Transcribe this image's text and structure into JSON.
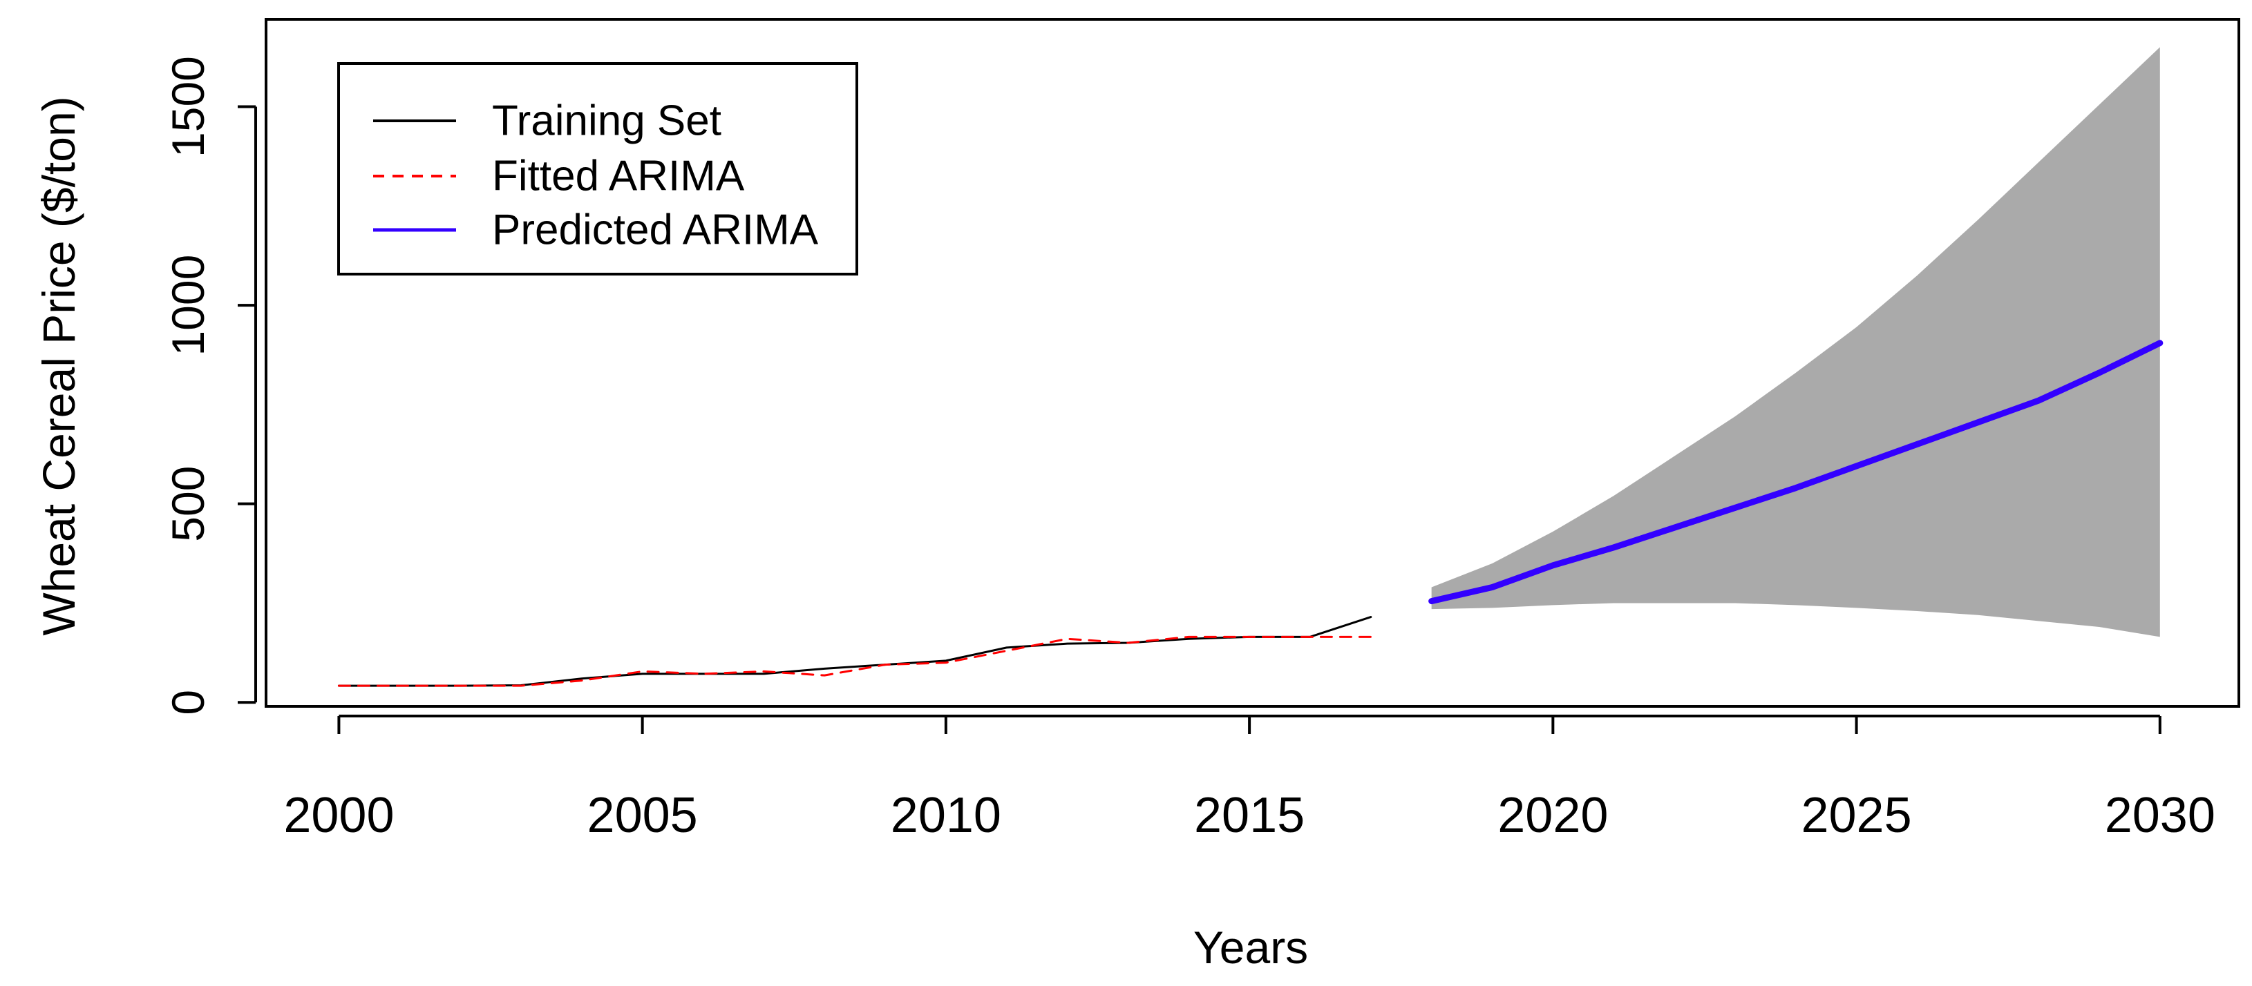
{
  "chart_data": {
    "type": "line",
    "title": "",
    "xlabel": "Years",
    "ylabel": "Wheat Cereal Price ($/ton)",
    "xlim": [
      1998.8,
      2031.3
    ],
    "ylim": [
      -10,
      1720
    ],
    "x_ticks": [
      2000,
      2005,
      2010,
      2015,
      2020,
      2025,
      2030
    ],
    "y_ticks": [
      0,
      500,
      1000,
      1500
    ],
    "grid": false,
    "legend_position": "top-left",
    "series": [
      {
        "name": "Training Set",
        "style": "solid",
        "color": "#000000",
        "x": [
          2000,
          2001,
          2002,
          2003,
          2004,
          2005,
          2006,
          2007,
          2008,
          2009,
          2010,
          2011,
          2012,
          2013,
          2014,
          2015,
          2016,
          2017
        ],
        "values": [
          42,
          42,
          42,
          43,
          60,
          72,
          72,
          72,
          85,
          95,
          105,
          138,
          148,
          150,
          160,
          165,
          165,
          215
        ]
      },
      {
        "name": "Fitted ARIMA",
        "style": "dashed",
        "color": "#ff0000",
        "x": [
          2000,
          2001,
          2002,
          2003,
          2004,
          2005,
          2006,
          2007,
          2008,
          2009,
          2010,
          2011,
          2012,
          2013,
          2014,
          2015,
          2016,
          2017
        ],
        "values": [
          42,
          42,
          42,
          42,
          55,
          78,
          72,
          78,
          68,
          95,
          100,
          130,
          160,
          150,
          165,
          165,
          165,
          165
        ]
      },
      {
        "name": "Predicted ARIMA",
        "style": "solid",
        "color": "#3300ff",
        "x": [
          2018,
          2019,
          2020,
          2021,
          2022,
          2023,
          2024,
          2025,
          2026,
          2027,
          2028,
          2029,
          2030
        ],
        "values": [
          255,
          290,
          345,
          390,
          440,
          490,
          540,
          595,
          650,
          705,
          760,
          830,
          905
        ]
      }
    ],
    "interval": {
      "name": "Prediction interval",
      "color": "#aaaaaa",
      "x": [
        2018,
        2019,
        2020,
        2021,
        2022,
        2023,
        2024,
        2025,
        2026,
        2027,
        2028,
        2029,
        2030
      ],
      "lower": [
        235,
        238,
        245,
        250,
        250,
        250,
        245,
        238,
        230,
        220,
        205,
        190,
        165
      ],
      "upper": [
        290,
        350,
        430,
        520,
        620,
        720,
        830,
        945,
        1075,
        1215,
        1360,
        1505,
        1650
      ]
    }
  }
}
